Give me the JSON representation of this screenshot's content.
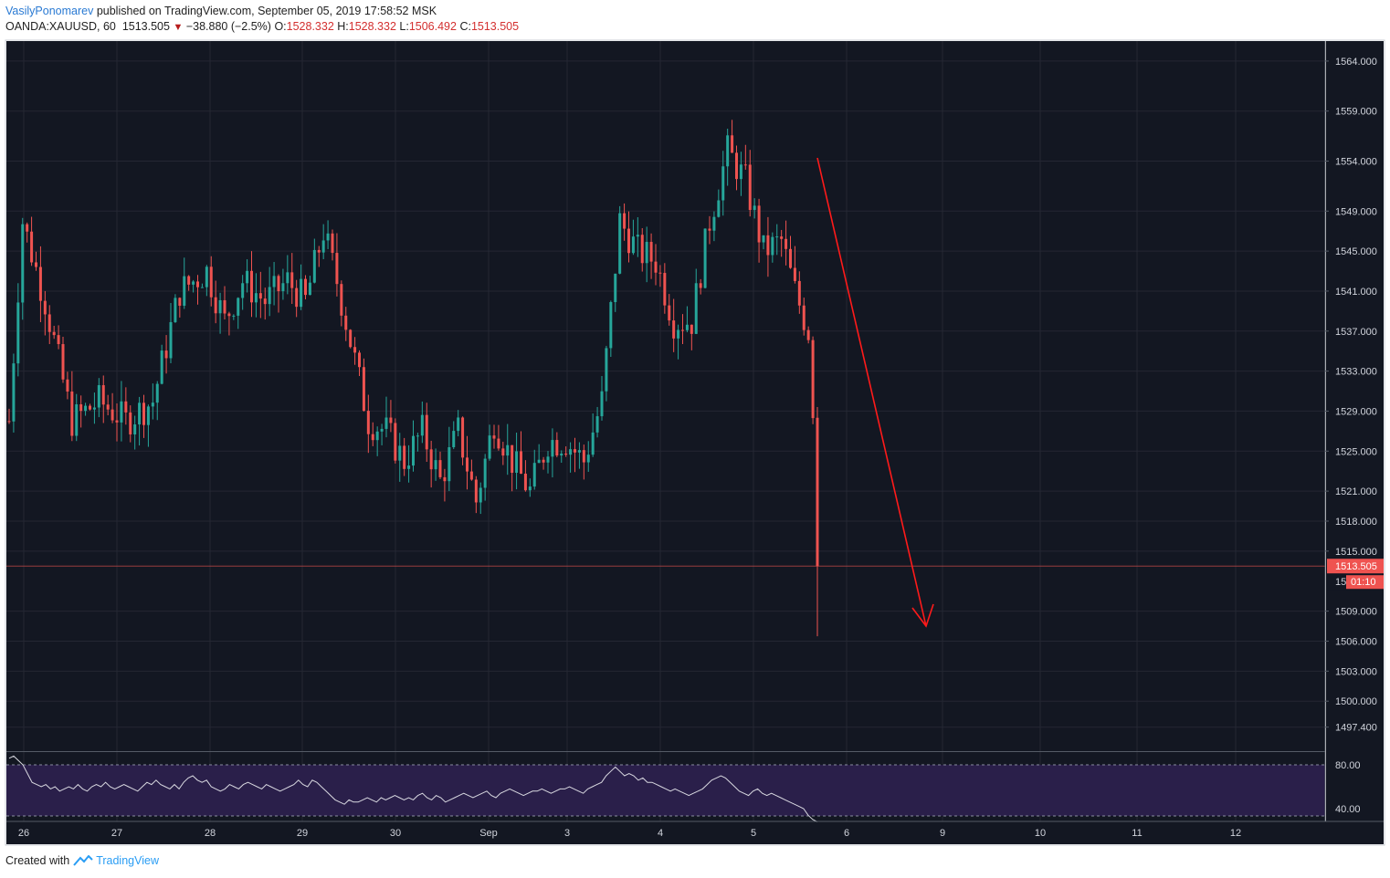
{
  "header": {
    "author": "VasilyPonomarev",
    "published": "published on TradingView.com, September 05, 2019 17:58:52 MSK"
  },
  "ticker": {
    "symbol": "OANDA:XAUUSD, 60",
    "last": "1513.505",
    "change": "−38.880 (−2.5%)",
    "o_label": "O:",
    "o": "1528.332",
    "h_label": "H:",
    "h": "1528.332",
    "l_label": "L:",
    "l": "1506.492",
    "c_label": "C:",
    "c": "1513.505"
  },
  "footer": {
    "created": "Created with",
    "brand": "TradingView"
  },
  "colors": {
    "background": "#131722",
    "grid": "#242733",
    "up": "#26a69a",
    "down": "#ef5350",
    "arrow": "#ff1a1a",
    "rsi_band": "#2a1f4a",
    "price_badge": "#ef5350"
  },
  "chart_data": {
    "type": "candlestick",
    "interval": "60",
    "x_ticks": [
      "26",
      "27",
      "28",
      "29",
      "30",
      "Sep",
      "3",
      "4",
      "5",
      "6",
      "9",
      "10",
      "11",
      "12"
    ],
    "y_ticks": [
      "1564.000",
      "1559.000",
      "1554.000",
      "1549.000",
      "1545.000",
      "1541.000",
      "1537.000",
      "1533.000",
      "1529.000",
      "1525.000",
      "1521.000",
      "1518.000",
      "1515.000",
      "1509.000",
      "1506.000",
      "1503.000",
      "1500.000",
      "1497.400"
    ],
    "y_range": [
      1495.0,
      1566.0
    ],
    "last_price": {
      "value": 1513.505,
      "label": "1513.505",
      "countdown": "01:10",
      "partial_tick": "15"
    },
    "anchors": [
      {
        "i": 0,
        "p": 1528
      },
      {
        "i": 3,
        "p": 1548
      },
      {
        "i": 8,
        "p": 1540
      },
      {
        "i": 14,
        "p": 1528
      },
      {
        "i": 20,
        "p": 1530
      },
      {
        "i": 26,
        "p": 1528
      },
      {
        "i": 32,
        "p": 1530
      },
      {
        "i": 38,
        "p": 1541
      },
      {
        "i": 44,
        "p": 1543
      },
      {
        "i": 48,
        "p": 1538
      },
      {
        "i": 52,
        "p": 1542
      },
      {
        "i": 57,
        "p": 1540
      },
      {
        "i": 62,
        "p": 1542
      },
      {
        "i": 66,
        "p": 1540
      },
      {
        "i": 70,
        "p": 1547
      },
      {
        "i": 73,
        "p": 1542
      },
      {
        "i": 76,
        "p": 1536
      },
      {
        "i": 80,
        "p": 1528
      },
      {
        "i": 84,
        "p": 1527
      },
      {
        "i": 88,
        "p": 1524
      },
      {
        "i": 92,
        "p": 1527
      },
      {
        "i": 96,
        "p": 1522
      },
      {
        "i": 100,
        "p": 1527
      },
      {
        "i": 104,
        "p": 1520
      },
      {
        "i": 108,
        "p": 1528
      },
      {
        "i": 112,
        "p": 1524
      },
      {
        "i": 116,
        "p": 1521
      },
      {
        "i": 120,
        "p": 1526
      },
      {
        "i": 124,
        "p": 1526
      },
      {
        "i": 128,
        "p": 1524
      },
      {
        "i": 132,
        "p": 1530
      },
      {
        "i": 136,
        "p": 1548
      },
      {
        "i": 140,
        "p": 1545
      },
      {
        "i": 144,
        "p": 1544
      },
      {
        "i": 148,
        "p": 1538
      },
      {
        "i": 152,
        "p": 1538
      },
      {
        "i": 156,
        "p": 1548
      },
      {
        "i": 160,
        "p": 1555
      },
      {
        "i": 164,
        "p": 1552
      },
      {
        "i": 168,
        "p": 1545
      },
      {
        "i": 172,
        "p": 1546
      },
      {
        "i": 175,
        "p": 1541
      },
      {
        "i": 178,
        "p": 1537
      },
      {
        "i": 179,
        "p": 1528.3
      },
      {
        "i": 180,
        "p": 1513.5
      }
    ],
    "rsi": {
      "levels": [
        "80.00",
        "40.00"
      ],
      "range": [
        30,
        90
      ],
      "values": [
        86,
        88,
        84,
        80,
        72,
        64,
        62,
        60,
        62,
        58,
        60,
        56,
        58,
        60,
        58,
        62,
        58,
        56,
        60,
        62,
        60,
        64,
        60,
        58,
        60,
        62,
        60,
        58,
        56,
        60,
        64,
        62,
        66,
        62,
        60,
        58,
        62,
        58,
        64,
        68,
        70,
        66,
        64,
        66,
        60,
        58,
        56,
        58,
        62,
        60,
        58,
        62,
        64,
        62,
        60,
        58,
        62,
        60,
        58,
        56,
        58,
        60,
        62,
        66,
        62,
        60,
        66,
        64,
        60,
        56,
        52,
        48,
        46,
        44,
        48,
        46,
        46,
        48,
        50,
        48,
        46,
        50,
        48,
        50,
        52,
        50,
        48,
        50,
        48,
        52,
        54,
        50,
        48,
        52,
        50,
        46,
        48,
        50,
        52,
        54,
        52,
        50,
        52,
        54,
        56,
        52,
        50,
        54,
        56,
        58,
        56,
        54,
        52,
        54,
        56,
        56,
        58,
        56,
        54,
        56,
        58,
        58,
        60,
        58,
        56,
        54,
        58,
        60,
        62,
        64,
        70,
        74,
        78,
        74,
        70,
        72,
        70,
        66,
        68,
        64,
        64,
        62,
        60,
        58,
        56,
        58,
        56,
        54,
        52,
        54,
        56,
        58,
        62,
        66,
        68,
        70,
        68,
        64,
        60,
        56,
        54,
        52,
        56,
        58,
        54,
        52,
        54,
        52,
        50,
        48,
        46,
        44,
        42,
        40,
        34,
        30,
        28
      ]
    }
  }
}
